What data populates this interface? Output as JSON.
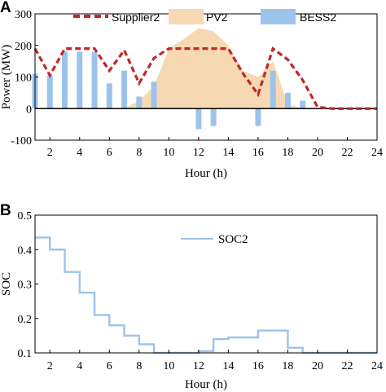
{
  "figure": {
    "panel_a_label": "A",
    "panel_b_label": "B"
  },
  "chart_data": [
    {
      "type": "line",
      "panel": "A",
      "xlabel": "Hour (h)",
      "ylabel": "Power (MW)",
      "xlim": [
        1,
        24
      ],
      "ylim": [
        -100,
        300
      ],
      "xticks": [
        "2",
        "4",
        "6",
        "8",
        "10",
        "12",
        "14",
        "16",
        "18",
        "20",
        "22",
        "24"
      ],
      "yticks": [
        "-100",
        "0",
        "100",
        "200",
        "300"
      ],
      "legend_position": "top",
      "x": [
        1,
        2,
        3,
        4,
        5,
        6,
        7,
        8,
        9,
        10,
        11,
        12,
        13,
        14,
        15,
        16,
        17,
        18,
        19,
        20,
        21,
        22,
        23,
        24
      ],
      "series": [
        {
          "name": "Supplier2",
          "kind": "line-dashed",
          "color": "#c0282a",
          "values": [
            190,
            105,
            190,
            190,
            190,
            120,
            185,
            80,
            160,
            190,
            190,
            190,
            190,
            190,
            110,
            45,
            190,
            155,
            90,
            5,
            0,
            0,
            0,
            0
          ]
        },
        {
          "name": "PV2",
          "kind": "area",
          "color": "#f6d9b2",
          "values": [
            0,
            0,
            0,
            0,
            0,
            0,
            0,
            25,
            70,
            190,
            220,
            255,
            245,
            200,
            120,
            100,
            150,
            15,
            0,
            0,
            0,
            0,
            0,
            0
          ]
        },
        {
          "name": "BESS2",
          "kind": "bar",
          "color": "#9cc3ec",
          "values": [
            110,
            105,
            180,
            180,
            180,
            80,
            120,
            38,
            85,
            0,
            0,
            -65,
            -55,
            0,
            0,
            -55,
            120,
            50,
            25,
            0,
            0,
            0,
            0,
            0
          ]
        }
      ]
    },
    {
      "type": "line",
      "panel": "B",
      "xlabel": "Hour (h)",
      "ylabel": "SOC",
      "xlim": [
        1,
        24
      ],
      "ylim": [
        0.1,
        0.5
      ],
      "xticks": [
        "2",
        "4",
        "6",
        "8",
        "10",
        "12",
        "14",
        "16",
        "18",
        "20",
        "22",
        "24"
      ],
      "yticks": [
        "0.1",
        "0.2",
        "0.3",
        "0.4",
        "0.5"
      ],
      "legend_position": "top-right",
      "x": [
        1,
        2,
        3,
        4,
        5,
        6,
        7,
        8,
        9,
        10,
        11,
        12,
        13,
        14,
        15,
        16,
        17,
        18,
        19,
        20,
        21,
        22,
        23,
        24
      ],
      "series": [
        {
          "name": "SOC2",
          "kind": "step",
          "color": "#9cc3ec",
          "values": [
            0.435,
            0.4,
            0.335,
            0.275,
            0.21,
            0.18,
            0.15,
            0.125,
            0.1,
            0.1,
            0.1,
            0.105,
            0.14,
            0.145,
            0.145,
            0.165,
            0.165,
            0.115,
            0.1,
            0.1,
            0.1,
            0.1,
            0.1,
            0.1
          ]
        }
      ]
    }
  ]
}
